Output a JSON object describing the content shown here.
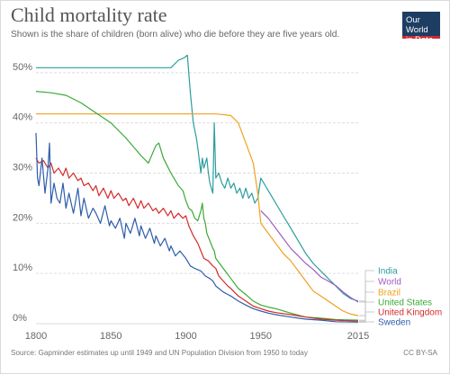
{
  "title": "Child mortality rate",
  "subtitle": "Shown is the share of children (born alive) who die before they are five years old.",
  "logo": {
    "line1": "Our World",
    "line2": "in Data"
  },
  "source": "Source: Gapminder estimates up until 1949 and UN Population Division from 1950 to today",
  "license": "CC BY-SA",
  "chart_data": {
    "type": "line",
    "title": "Child mortality rate",
    "xlabel": "",
    "ylabel": "",
    "xlim": [
      1800,
      2015
    ],
    "ylim": [
      0,
      55
    ],
    "grid": true,
    "legend": "right",
    "y_ticks": [
      "0%",
      "10%",
      "20%",
      "30%",
      "40%",
      "50%"
    ],
    "y_tick_values": [
      0,
      10,
      20,
      30,
      40,
      50
    ],
    "x_ticks": [
      "1800",
      "1850",
      "1900",
      "1950",
      "2015"
    ],
    "x_tick_values": [
      1800,
      1850,
      1900,
      1950,
      2015
    ],
    "series": [
      {
        "name": "India",
        "color": "#2a9d9f",
        "x": [
          1800,
          1880,
          1885,
          1890,
          1895,
          1899,
          1901,
          1903,
          1905,
          1907,
          1908,
          1910,
          1911,
          1912,
          1914,
          1915,
          1916,
          1918,
          1919,
          1920,
          1922,
          1924,
          1926,
          1928,
          1930,
          1932,
          1934,
          1936,
          1938,
          1940,
          1942,
          1944,
          1946,
          1948,
          1950,
          1953,
          1956,
          1960,
          1965,
          1970,
          1975,
          1980,
          1985,
          1990,
          1995,
          2000,
          2005,
          2010,
          2015
        ],
        "values": [
          51,
          51,
          51,
          51,
          52.5,
          53,
          53.5,
          46,
          40,
          37,
          35,
          30,
          33,
          31,
          33,
          30,
          28,
          26,
          40,
          29,
          30,
          28,
          27,
          29,
          27,
          28,
          26,
          27,
          25,
          27,
          25,
          26,
          24,
          25,
          29,
          27.5,
          26,
          24,
          21.5,
          19,
          16.5,
          14,
          12,
          10.5,
          9,
          7.5,
          6,
          5,
          4.5
        ]
      },
      {
        "name": "World",
        "color": "#a05ac4",
        "x": [
          1950,
          1955,
          1960,
          1965,
          1970,
          1975,
          1980,
          1985,
          1990,
          1995,
          2000,
          2005,
          2010,
          2015
        ],
        "values": [
          22.5,
          21,
          19,
          17,
          15,
          13.5,
          12,
          10.8,
          9.3,
          8.5,
          7.6,
          6.3,
          5.2,
          4.3
        ]
      },
      {
        "name": "Brazil",
        "color": "#f0a020",
        "x": [
          1800,
          1900,
          1920,
          1930,
          1935,
          1940,
          1945,
          1948,
          1950,
          1955,
          1960,
          1965,
          1970,
          1975,
          1980,
          1985,
          1990,
          1995,
          2000,
          2005,
          2010,
          2015
        ],
        "values": [
          41.8,
          41.8,
          41.8,
          41.5,
          40,
          36,
          32,
          26,
          20,
          18,
          16,
          14,
          12.5,
          10.5,
          8.5,
          6.5,
          5.5,
          4.5,
          3.5,
          2.5,
          1.9,
          1.6
        ]
      },
      {
        "name": "United States",
        "color": "#3aaa35",
        "x": [
          1800,
          1810,
          1820,
          1830,
          1840,
          1850,
          1860,
          1870,
          1875,
          1880,
          1882,
          1885,
          1890,
          1893,
          1895,
          1898,
          1900,
          1902,
          1904,
          1906,
          1908,
          1910,
          1911,
          1912,
          1913,
          1914,
          1916,
          1918,
          1919,
          1920,
          1925,
          1930,
          1935,
          1940,
          1945,
          1950,
          1955,
          1960,
          1970,
          1980,
          1990,
          2000,
          2015
        ],
        "values": [
          46.3,
          46,
          45.5,
          44,
          42,
          40,
          37,
          33.5,
          32,
          35.5,
          36,
          33,
          30,
          28.5,
          27.5,
          26.5,
          24.5,
          23,
          22.5,
          21,
          20.5,
          22.5,
          24,
          21,
          20,
          18,
          16.5,
          15,
          14.5,
          13,
          11,
          9,
          7,
          5.8,
          4.5,
          3.7,
          3.3,
          3,
          2.1,
          1.3,
          1.1,
          0.8,
          0.7
        ]
      },
      {
        "name": "United Kingdom",
        "color": "#d42a2a",
        "x": [
          1800,
          1802,
          1805,
          1808,
          1810,
          1812,
          1815,
          1818,
          1820,
          1822,
          1825,
          1828,
          1830,
          1832,
          1835,
          1838,
          1840,
          1842,
          1845,
          1848,
          1850,
          1852,
          1855,
          1858,
          1860,
          1862,
          1865,
          1868,
          1870,
          1872,
          1875,
          1878,
          1880,
          1882,
          1885,
          1888,
          1890,
          1892,
          1895,
          1898,
          1900,
          1902,
          1905,
          1908,
          1910,
          1912,
          1915,
          1918,
          1920,
          1922,
          1925,
          1928,
          1930,
          1935,
          1940,
          1945,
          1950,
          1955,
          1960,
          1970,
          1980,
          1990,
          2000,
          2015
        ],
        "values": [
          33,
          32,
          32.5,
          31,
          32,
          30,
          31,
          29.5,
          31,
          29,
          30,
          28.5,
          29,
          27.5,
          28,
          26.5,
          27.5,
          25.5,
          27,
          25,
          26.5,
          25,
          26,
          24.5,
          25,
          23.5,
          25,
          23,
          24.5,
          23,
          24,
          22.5,
          23,
          22,
          23,
          21.5,
          22.5,
          21,
          22,
          21,
          21.5,
          19.5,
          17.5,
          16,
          14.5,
          13,
          12.5,
          11.5,
          11,
          9.5,
          8.5,
          7.5,
          7,
          5.5,
          4.5,
          3.5,
          3,
          2.5,
          2.2,
          1.8,
          1.3,
          0.9,
          0.7,
          0.5
        ]
      },
      {
        "name": "Sweden",
        "color": "#2e5cab",
        "x": [
          1800,
          1801,
          1802,
          1804,
          1806,
          1808,
          1809,
          1810,
          1812,
          1814,
          1816,
          1818,
          1820,
          1822,
          1825,
          1828,
          1830,
          1832,
          1835,
          1838,
          1840,
          1843,
          1846,
          1849,
          1850,
          1853,
          1856,
          1859,
          1860,
          1863,
          1866,
          1869,
          1870,
          1873,
          1876,
          1879,
          1880,
          1883,
          1886,
          1889,
          1890,
          1893,
          1896,
          1900,
          1903,
          1906,
          1910,
          1913,
          1916,
          1918,
          1920,
          1925,
          1930,
          1935,
          1940,
          1945,
          1950,
          1955,
          1960,
          1970,
          1980,
          1990,
          2000,
          2015
        ],
        "values": [
          38,
          29,
          27.5,
          33,
          26,
          31,
          36,
          24,
          28,
          25,
          24,
          28,
          23,
          26,
          22,
          27,
          21.5,
          25,
          21,
          23,
          22,
          20,
          23.5,
          19.5,
          20.5,
          19,
          21,
          17,
          20,
          18,
          21,
          17.5,
          19.5,
          17,
          19,
          16,
          17.5,
          15.5,
          17,
          14.5,
          15.5,
          13.5,
          14.5,
          13,
          11.5,
          11,
          10.5,
          9.5,
          9,
          8.5,
          7.5,
          6.3,
          5.5,
          4.5,
          3.7,
          3,
          2.5,
          2.1,
          1.8,
          1.3,
          0.9,
          0.7,
          0.4,
          0.3
        ]
      }
    ]
  }
}
